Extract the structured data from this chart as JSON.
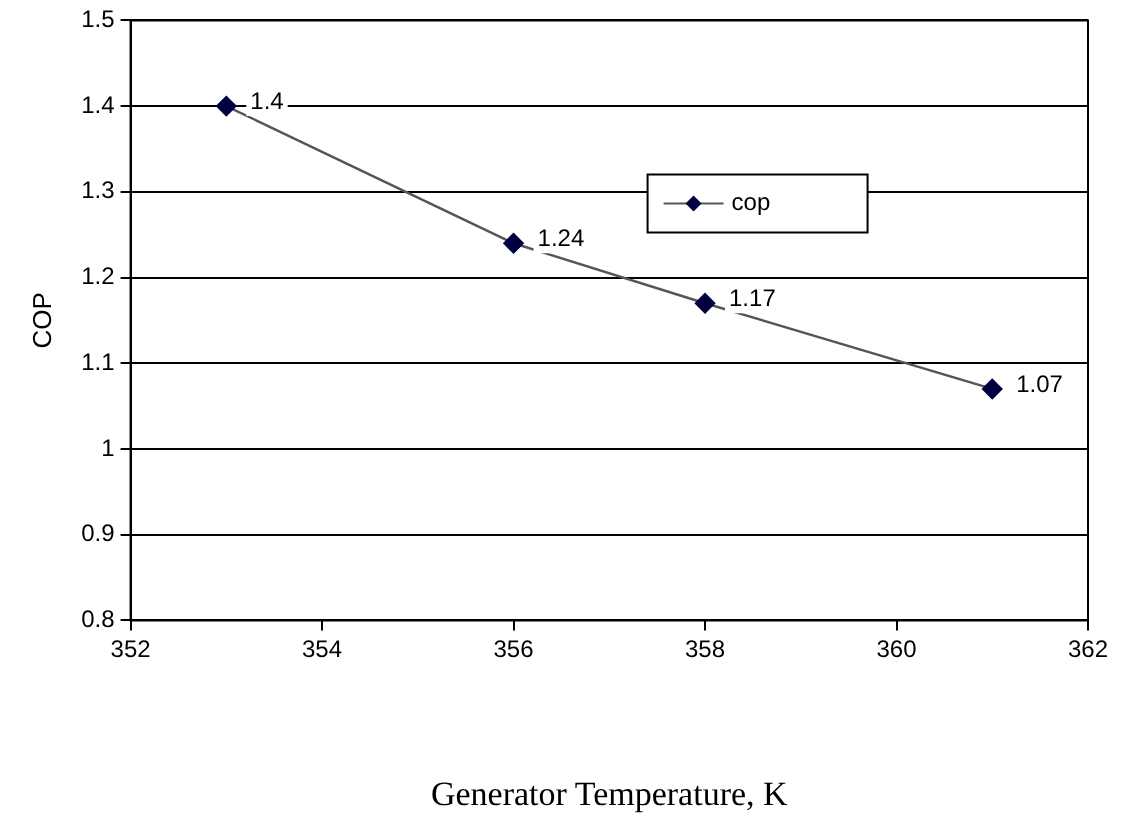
{
  "chart_data": {
    "type": "line",
    "xlabel": "Generator Temperature, K",
    "ylabel": "COP",
    "x": [
      353,
      356,
      358,
      361
    ],
    "series": [
      {
        "name": "cop",
        "color": "#000040",
        "values": [
          1.4,
          1.24,
          1.17,
          1.07
        ]
      }
    ],
    "xlim": [
      352,
      362
    ],
    "xticks": [
      352,
      354,
      356,
      358,
      360,
      362
    ],
    "ylim": [
      0.8,
      1.5
    ],
    "yticks": [
      0.8,
      0.9,
      1,
      1.1,
      1.2,
      1.3,
      1.4,
      1.5
    ],
    "grid": "y",
    "legend": "top right",
    "marker": "diamond",
    "line_style": "solid",
    "data_labels": true
  }
}
